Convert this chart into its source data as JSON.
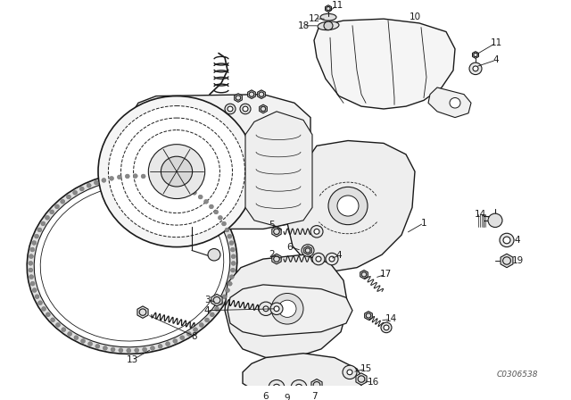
{
  "background_color": "#ffffff",
  "line_color": "#1a1a1a",
  "fig_width": 6.4,
  "fig_height": 4.48,
  "dpi": 100,
  "catalog_number": "C0306538",
  "label_fontsize": 7.5,
  "catalog_fontsize": 6.5
}
